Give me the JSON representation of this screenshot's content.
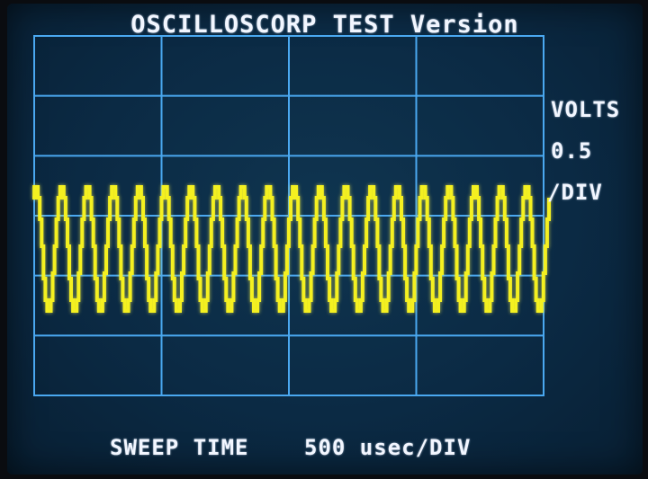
{
  "title": "OSCILLOSCORP TEST Version",
  "volts_div": {
    "label": "VOLTS",
    "value": "0.5",
    "unit": "/DIV"
  },
  "sweep": {
    "label": "SWEEP TIME",
    "value": "500 usec/DIV"
  },
  "colors": {
    "grid": "#4aa8f0",
    "trace": "#f4f020",
    "text": "#f2f6ff",
    "screen": "#0b2a44"
  },
  "grid": {
    "divisions_x": 4,
    "divisions_y": 6
  },
  "waveform": {
    "cycles": 20,
    "amplitude_div": 1,
    "offset_div": 0.75
  }
}
